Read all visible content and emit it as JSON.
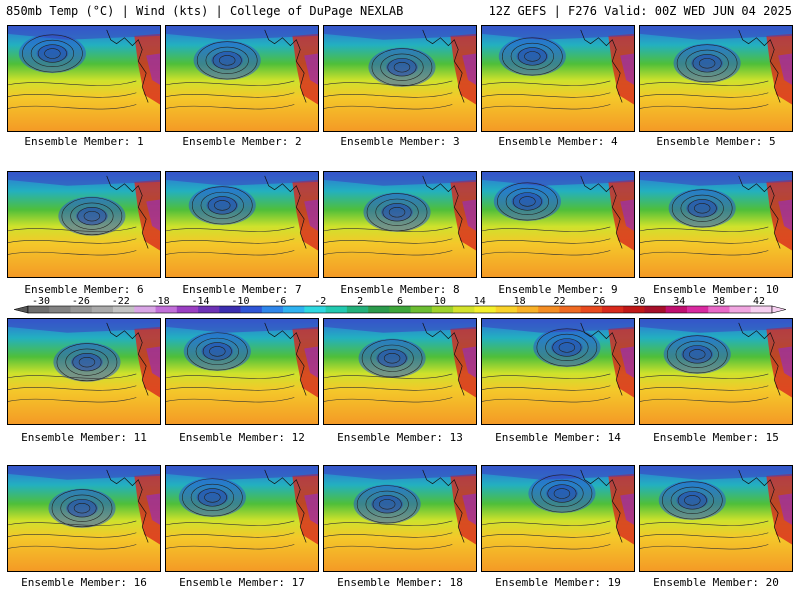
{
  "header": {
    "left_title": "850mb Temp (°C) | Wind (kts) | College of DuPage NEXLAB",
    "right_title": "12Z GEFS | F276 Valid: 00Z WED JUN 04 2025"
  },
  "colorbar": {
    "labels": [
      "-30",
      "-26",
      "-22",
      "-18",
      "-14",
      "-10",
      "-6",
      "-2",
      "2",
      "6",
      "10",
      "14",
      "18",
      "22",
      "26",
      "30",
      "34",
      "38",
      "42"
    ],
    "colors": [
      "#6e6e6e",
      "#828282",
      "#969696",
      "#aaaaaa",
      "#c3c3c3",
      "#d9a6e6",
      "#c16fd8",
      "#9a3fc2",
      "#6d32b5",
      "#3b2eb0",
      "#2f55d6",
      "#2f86ea",
      "#2fb2f0",
      "#2ed8e0",
      "#22c9b0",
      "#23b07a",
      "#2c9b4c",
      "#3ea63a",
      "#6cbd32",
      "#9ed22c",
      "#d3e22c",
      "#f4f02c",
      "#f9d22a",
      "#f8b128",
      "#f48d24",
      "#ef6a22",
      "#e84a1f",
      "#d82a1c",
      "#c01818",
      "#a6102a",
      "#c01070",
      "#d82aa0",
      "#e86ac8",
      "#f0a6e0",
      "#f6cff0"
    ]
  },
  "members": [
    {
      "label": "Ensemble Member: 1"
    },
    {
      "label": "Ensemble Member: 2"
    },
    {
      "label": "Ensemble Member: 3"
    },
    {
      "label": "Ensemble Member: 4"
    },
    {
      "label": "Ensemble Member: 5"
    },
    {
      "label": "Ensemble Member: 6"
    },
    {
      "label": "Ensemble Member: 7"
    },
    {
      "label": "Ensemble Member: 8"
    },
    {
      "label": "Ensemble Member: 9"
    },
    {
      "label": "Ensemble Member: 10"
    },
    {
      "label": "Ensemble Member: 11"
    },
    {
      "label": "Ensemble Member: 12"
    },
    {
      "label": "Ensemble Member: 13"
    },
    {
      "label": "Ensemble Member: 14"
    },
    {
      "label": "Ensemble Member: 15"
    },
    {
      "label": "Ensemble Member: 16"
    },
    {
      "label": "Ensemble Member: 17"
    },
    {
      "label": "Ensemble Member: 18"
    },
    {
      "label": "Ensemble Member: 19"
    },
    {
      "label": "Ensemble Member: 20"
    }
  ]
}
